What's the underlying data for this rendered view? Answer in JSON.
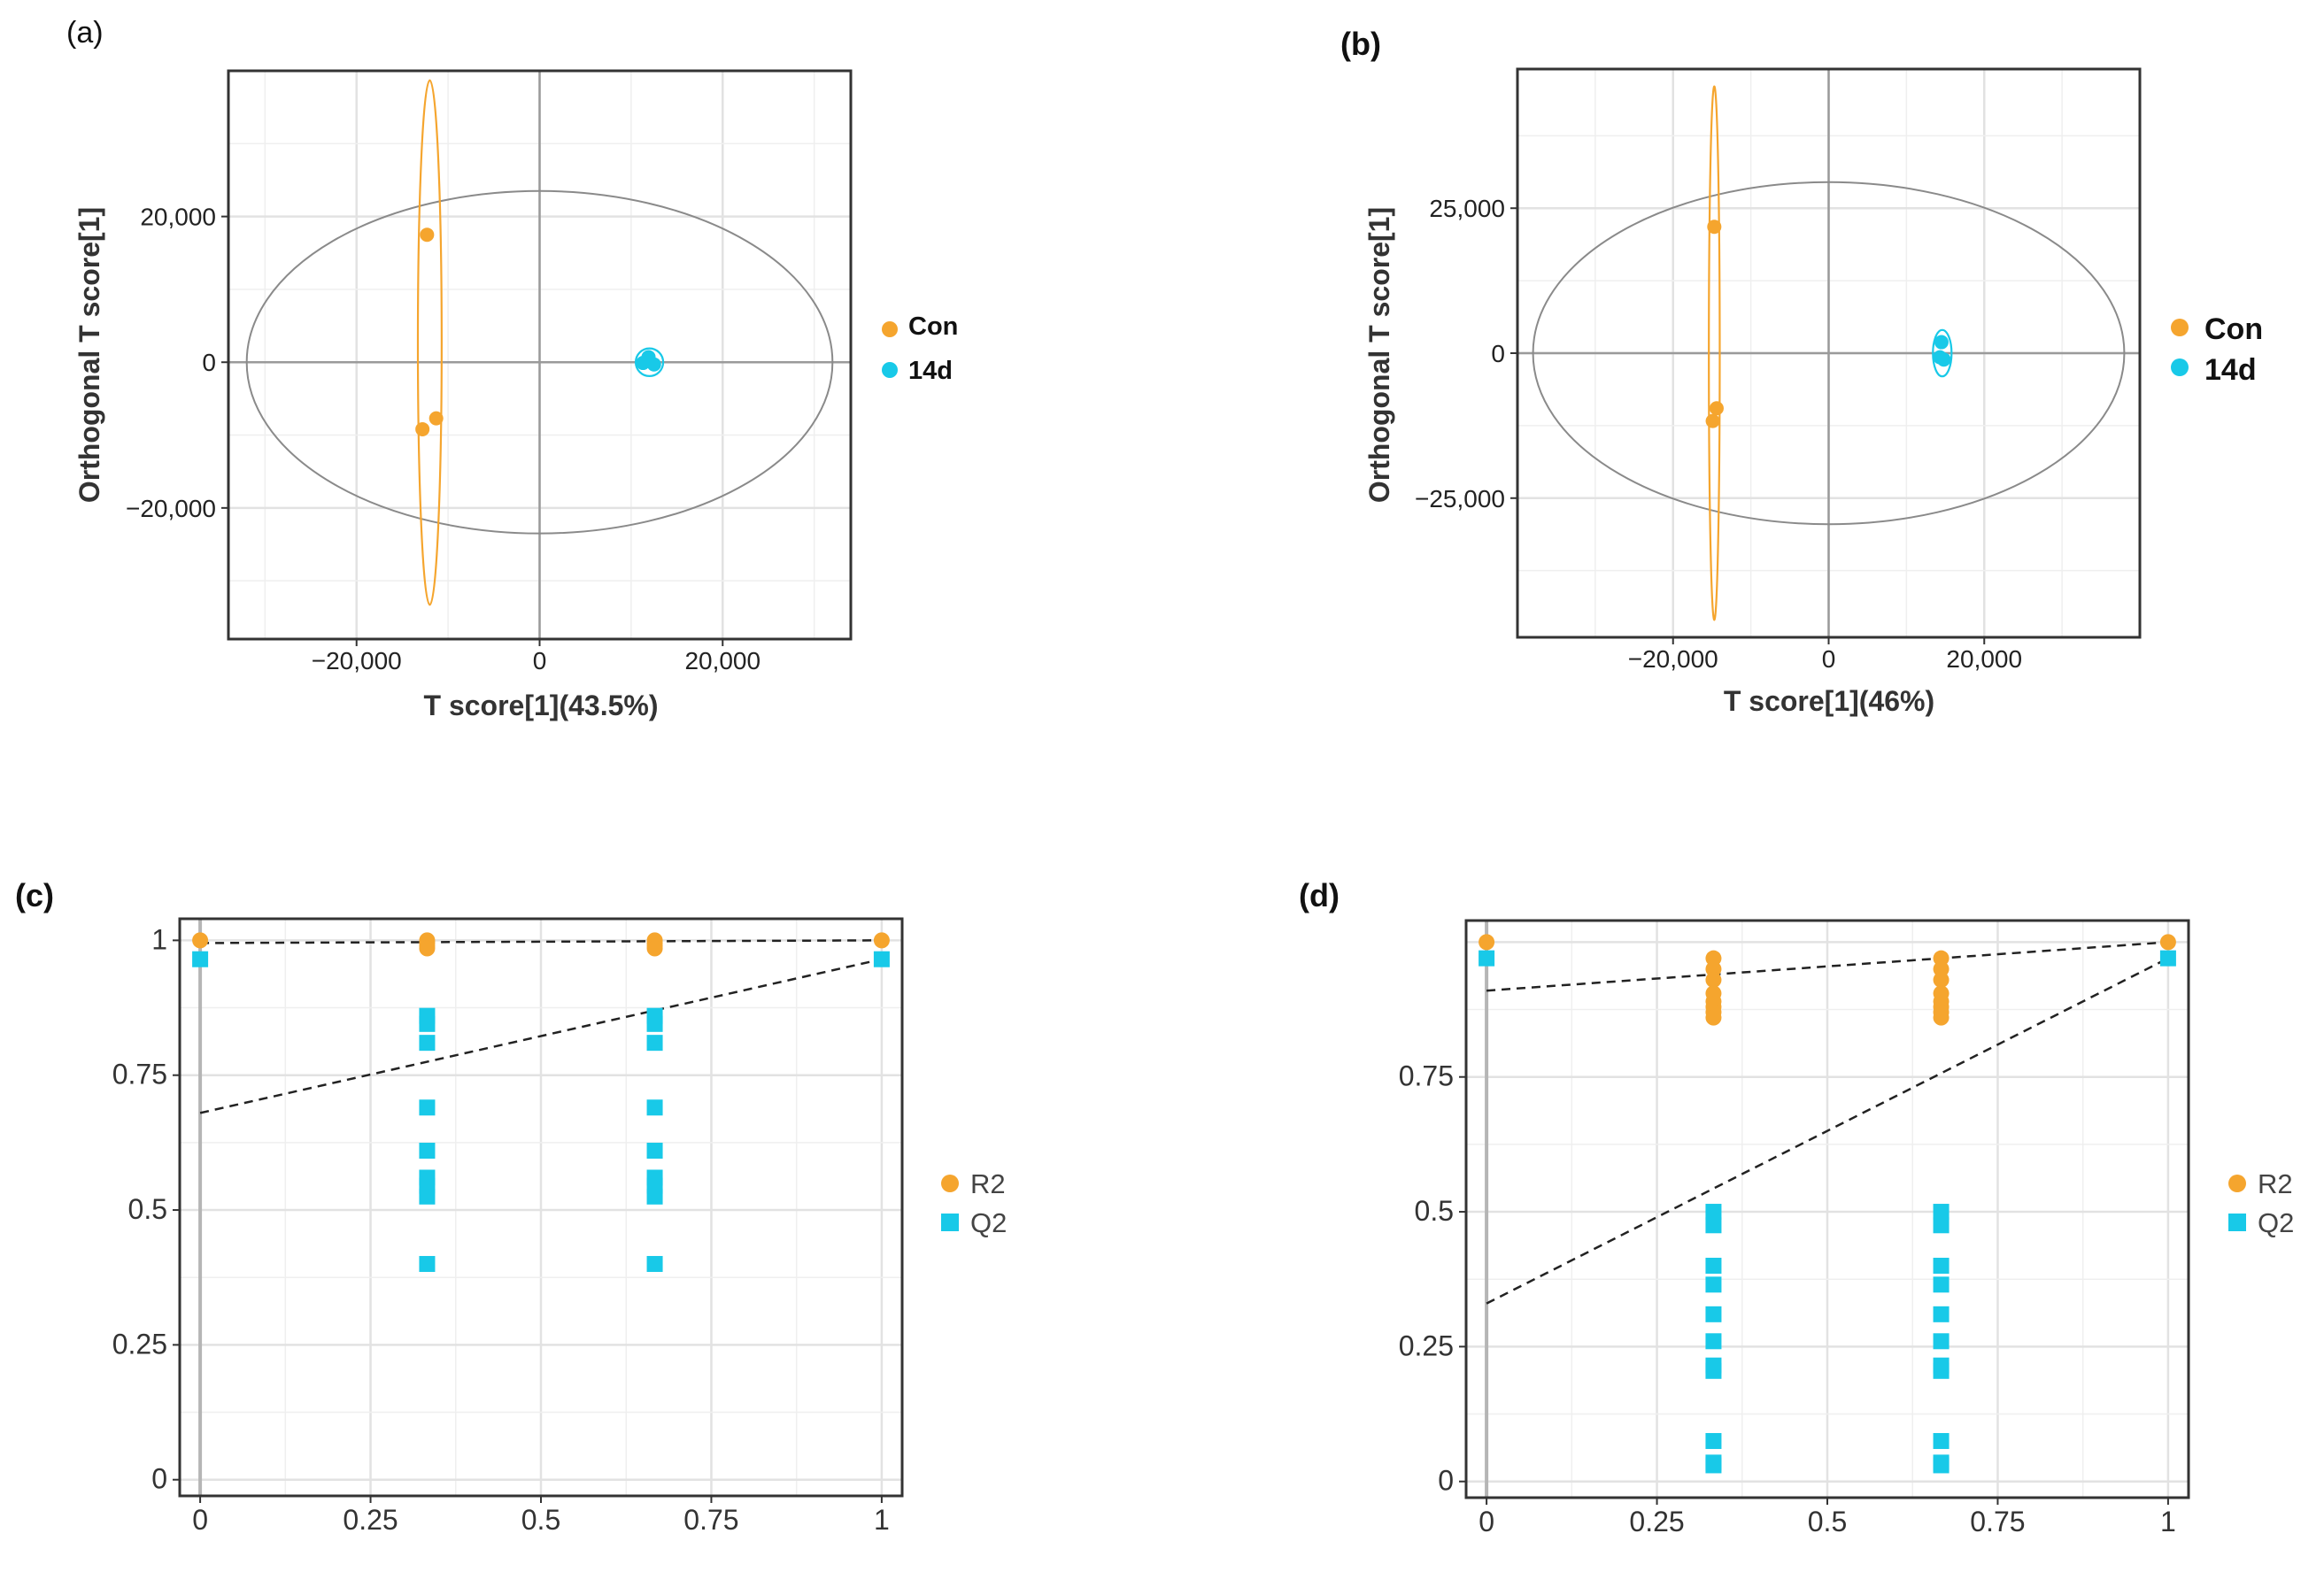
{
  "chart_data": [
    {
      "panel": "(a)",
      "type": "scatter",
      "title": "",
      "xlabel": "T score[1](43.5%)",
      "ylabel": "Orthogonal T score[1]",
      "xlim": [
        -34000,
        34000
      ],
      "ylim": [
        -38000,
        40000
      ],
      "xticks": [
        -20000,
        0,
        20000
      ],
      "xtick_labels": [
        "−20,000",
        "0",
        "20,000"
      ],
      "yticks": [
        20000,
        0,
        -20000
      ],
      "ytick_labels": [
        "20,000",
        "0",
        "−20,000"
      ],
      "grid": true,
      "series": [
        {
          "name": "Con",
          "color": "#F5A52E",
          "points": [
            [
              -12300,
              17500
            ],
            [
              -11300,
              -7700
            ],
            [
              -12800,
              -9200
            ]
          ],
          "ellipse": {
            "cx": -12000,
            "cy": 2700,
            "rx": 1300,
            "ry": 36000
          }
        },
        {
          "name": "14d",
          "color": "#18C9E8",
          "points": [
            [
              11900,
              700
            ],
            [
              11300,
              -100
            ],
            [
              12500,
              -300
            ]
          ],
          "ellipse": {
            "cx": 12000,
            "cy": 0,
            "rx": 1500,
            "ry": 1900
          }
        }
      ],
      "confidence_ellipse": {
        "cx": 0,
        "cy": 0,
        "rx": 32000,
        "ry": 23500
      },
      "legend": "right"
    },
    {
      "panel": "(b)",
      "type": "scatter",
      "title": "",
      "xlabel": "T score[1](46%)",
      "ylabel": "Orthogonal T score[1]",
      "xlim": [
        -40000,
        40000
      ],
      "ylim": [
        -49000,
        49000
      ],
      "xticks": [
        -20000,
        0,
        20000
      ],
      "xtick_labels": [
        "−20,000",
        "0",
        "20,000"
      ],
      "yticks": [
        25000,
        0,
        -25000
      ],
      "ytick_labels": [
        "25,000",
        "0",
        "−25,000"
      ],
      "grid": true,
      "series": [
        {
          "name": "Con",
          "color": "#F5A52E",
          "points": [
            [
              -14700,
              21800
            ],
            [
              -14400,
              -9500
            ],
            [
              -14900,
              -11700
            ]
          ],
          "ellipse": {
            "cx": -14700,
            "cy": 0,
            "rx": 700,
            "ry": 46000
          }
        },
        {
          "name": "14d",
          "color": "#18C9E8",
          "points": [
            [
              14500,
              1900
            ],
            [
              14300,
              -700
            ],
            [
              14800,
              -1100
            ]
          ],
          "ellipse": {
            "cx": 14600,
            "cy": 0,
            "rx": 1200,
            "ry": 4000
          }
        }
      ],
      "confidence_ellipse": {
        "cx": 0,
        "cy": 0,
        "rx": 38000,
        "ry": 29500
      },
      "legend": "right"
    },
    {
      "panel": "(c)",
      "type": "scatter",
      "title": "",
      "xlabel": "",
      "ylabel": "",
      "xlim": [
        -0.03,
        1.03
      ],
      "ylim": [
        -0.03,
        1.04
      ],
      "xticks": [
        0,
        0.25,
        0.5,
        0.75,
        1
      ],
      "xtick_labels": [
        "0",
        "0.25",
        "0.5",
        "0.75",
        "1"
      ],
      "yticks": [
        0,
        0.25,
        0.5,
        0.75,
        1
      ],
      "ytick_labels": [
        "0",
        "0.25",
        "0.5",
        "0.75",
        "1"
      ],
      "grid": true,
      "series": [
        {
          "name": "R2",
          "marker": "circle",
          "color": "#F5A52E",
          "x": [
            0,
            0.333,
            0.333,
            0.333,
            0.333,
            0.667,
            0.667,
            0.667,
            0.667,
            1
          ],
          "y": [
            1,
            1,
            0.995,
            0.99,
            0.985,
            1,
            0.995,
            0.99,
            0.985,
            1
          ],
          "trend": {
            "intercept": 0.995,
            "slope": 0.005
          }
        },
        {
          "name": "Q2",
          "marker": "square",
          "color": "#18C9E8",
          "x": [
            0,
            0.333,
            0.333,
            0.333,
            0.333,
            0.333,
            0.333,
            0.333,
            0.333,
            0.333,
            0.667,
            0.667,
            0.667,
            0.667,
            0.667,
            0.667,
            0.667,
            0.667,
            0.667,
            1
          ],
          "y": [
            0.965,
            0.86,
            0.845,
            0.81,
            0.69,
            0.61,
            0.56,
            0.545,
            0.525,
            0.4,
            0.86,
            0.845,
            0.81,
            0.69,
            0.61,
            0.56,
            0.545,
            0.525,
            0.4,
            0.965
          ],
          "trend": {
            "intercept": 0.68,
            "slope": 0.285
          }
        }
      ],
      "legend": "right"
    },
    {
      "panel": "(d)",
      "type": "scatter",
      "title": "",
      "xlabel": "",
      "ylabel": "",
      "xlim": [
        -0.03,
        1.03
      ],
      "ylim": [
        -0.03,
        1.04
      ],
      "xticks": [
        0,
        0.25,
        0.5,
        0.75,
        1
      ],
      "xtick_labels": [
        "0",
        "0.25",
        "0.5",
        "0.75",
        "1"
      ],
      "yticks": [
        0,
        0.25,
        0.5,
        0.75
      ],
      "ytick_labels": [
        "0",
        "0.25",
        "0.5",
        "0.75"
      ],
      "grid": true,
      "series": [
        {
          "name": "R2",
          "marker": "circle",
          "color": "#F5A52E",
          "x": [
            0,
            0.333,
            0.333,
            0.333,
            0.333,
            0.333,
            0.333,
            0.333,
            0.333,
            0.667,
            0.667,
            0.667,
            0.667,
            0.667,
            0.667,
            0.667,
            0.667,
            1
          ],
          "y": [
            1,
            0.97,
            0.95,
            0.93,
            0.905,
            0.89,
            0.88,
            0.87,
            0.86,
            0.97,
            0.95,
            0.93,
            0.905,
            0.89,
            0.88,
            0.87,
            0.86,
            1
          ],
          "trend": {
            "intercept": 0.91,
            "slope": 0.09
          }
        },
        {
          "name": "Q2",
          "marker": "square",
          "color": "#18C9E8",
          "x": [
            0,
            0.333,
            0.333,
            0.333,
            0.333,
            0.333,
            0.333,
            0.333,
            0.333,
            0.333,
            0.333,
            0.333,
            0.667,
            0.667,
            0.667,
            0.667,
            0.667,
            0.667,
            0.667,
            0.667,
            0.667,
            0.667,
            0.667,
            1
          ],
          "y": [
            0.97,
            0.5,
            0.475,
            0.4,
            0.365,
            0.31,
            0.26,
            0.215,
            0.205,
            0.075,
            0.035,
            0.03,
            0.5,
            0.475,
            0.4,
            0.365,
            0.31,
            0.26,
            0.215,
            0.205,
            0.075,
            0.035,
            0.03,
            0.97
          ],
          "trend": {
            "intercept": 0.33,
            "slope": 0.64
          }
        }
      ],
      "legend": "right"
    }
  ]
}
